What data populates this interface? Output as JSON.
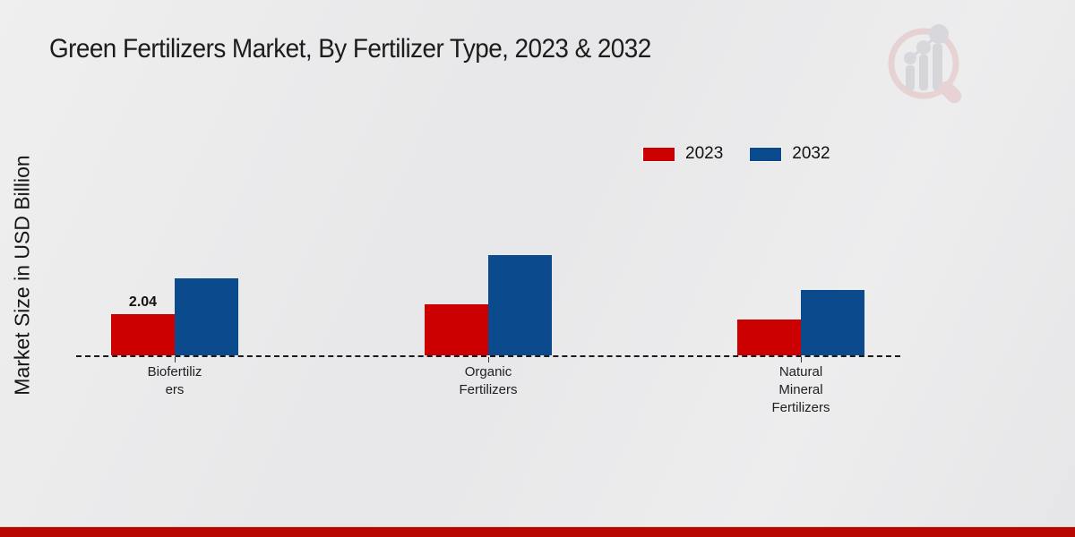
{
  "header": {
    "title": "Green Fertilizers Market, By Fertilizer Type, 2023 & 2032",
    "logo_name": "market-research-future-logo"
  },
  "colors": {
    "series_2023": "#cc0000",
    "series_2032": "#0b4a8c",
    "footer_bar": "#b80700",
    "baseline": "#1a1a1a"
  },
  "chart_data": {
    "type": "bar",
    "title": "Green Fertilizers Market, By Fertilizer Type, 2023 & 2032",
    "ylabel": "Market Size in USD Billion",
    "xlabel": "",
    "categories": [
      "Biofertilizers",
      "Organic Fertilizers",
      "Natural Mineral Fertilizers"
    ],
    "categories_display_lines": [
      [
        "Biofertiliz",
        "ers"
      ],
      [
        "Organic",
        "Fertilizers"
      ],
      [
        "Natural",
        "Mineral",
        "Fertilizers"
      ]
    ],
    "series": [
      {
        "name": "2023",
        "color": "#cc0000",
        "values": [
          2.04,
          2.53,
          1.77
        ]
      },
      {
        "name": "2032",
        "color": "#0b4a8c",
        "values": [
          3.81,
          4.97,
          3.24
        ]
      }
    ],
    "annotations": [
      {
        "series": "2023",
        "category": "Biofertilizers",
        "text": "2.04"
      }
    ],
    "legend_position": "top-right",
    "grid": false,
    "baseline_style": "dashed",
    "ylim": [
      0,
      5.5
    ]
  }
}
